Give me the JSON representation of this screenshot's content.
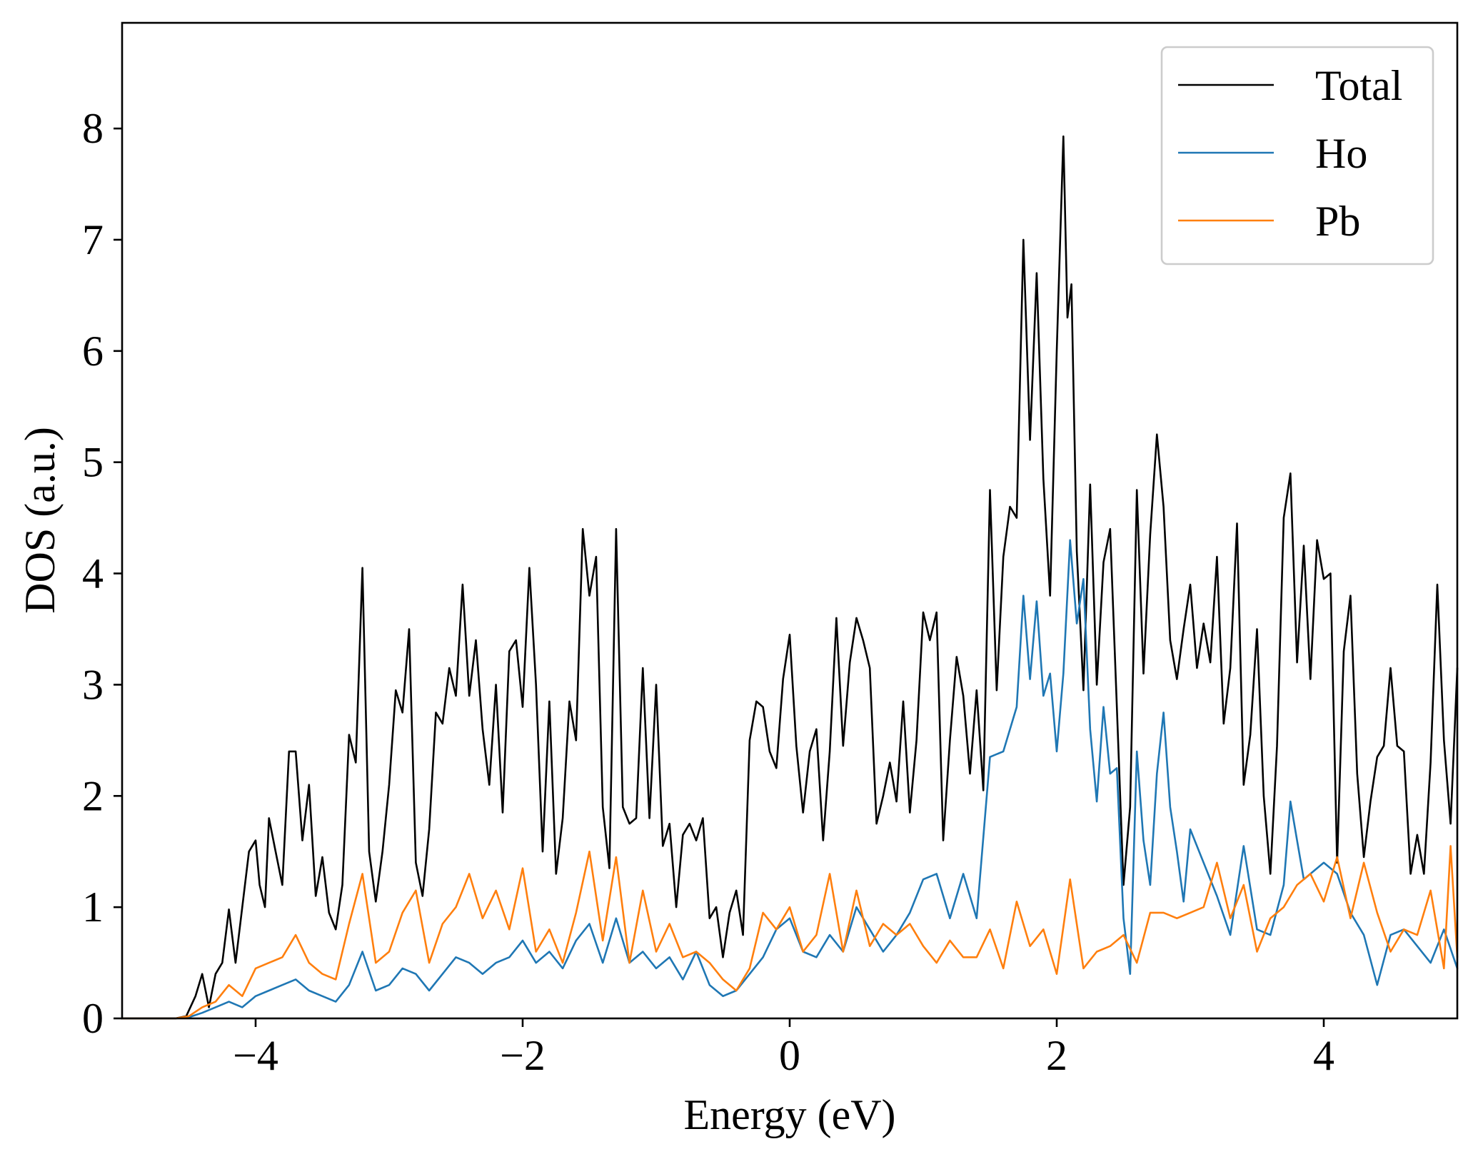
{
  "chart_data": {
    "type": "line",
    "title": "",
    "xlabel": "Energy (eV)",
    "ylabel": "DOS (a.u.)",
    "xlim": [
      -5,
      5
    ],
    "ylim": [
      0,
      8.95
    ],
    "x_ticks": [
      -4,
      -2,
      0,
      2,
      4
    ],
    "x_tick_labels": [
      "−4",
      "−2",
      "0",
      "2",
      "4"
    ],
    "y_ticks": [
      0,
      1,
      2,
      3,
      4,
      5,
      6,
      7,
      8
    ],
    "y_tick_labels": [
      "0",
      "1",
      "2",
      "3",
      "4",
      "5",
      "6",
      "7",
      "8"
    ],
    "grid": false,
    "legend_position": "top-right",
    "series": [
      {
        "name": "Total",
        "color": "#000000",
        "x": [
          -5.0,
          -4.6,
          -4.52,
          -4.45,
          -4.4,
          -4.35,
          -4.3,
          -4.25,
          -4.2,
          -4.15,
          -4.1,
          -4.05,
          -4.0,
          -3.97,
          -3.93,
          -3.9,
          -3.85,
          -3.8,
          -3.75,
          -3.7,
          -3.65,
          -3.6,
          -3.55,
          -3.5,
          -3.45,
          -3.4,
          -3.35,
          -3.3,
          -3.25,
          -3.2,
          -3.15,
          -3.1,
          -3.05,
          -3.0,
          -2.95,
          -2.9,
          -2.85,
          -2.8,
          -2.75,
          -2.7,
          -2.65,
          -2.6,
          -2.55,
          -2.5,
          -2.45,
          -2.4,
          -2.35,
          -2.3,
          -2.25,
          -2.2,
          -2.15,
          -2.1,
          -2.05,
          -2.0,
          -1.95,
          -1.9,
          -1.85,
          -1.8,
          -1.75,
          -1.7,
          -1.65,
          -1.6,
          -1.55,
          -1.5,
          -1.45,
          -1.4,
          -1.35,
          -1.3,
          -1.25,
          -1.2,
          -1.15,
          -1.1,
          -1.05,
          -1.0,
          -0.95,
          -0.9,
          -0.85,
          -0.8,
          -0.75,
          -0.7,
          -0.65,
          -0.6,
          -0.55,
          -0.5,
          -0.45,
          -0.4,
          -0.35,
          -0.3,
          -0.25,
          -0.2,
          -0.15,
          -0.1,
          -0.05,
          0.0,
          0.05,
          0.1,
          0.15,
          0.2,
          0.25,
          0.3,
          0.35,
          0.4,
          0.45,
          0.5,
          0.55,
          0.6,
          0.65,
          0.7,
          0.75,
          0.8,
          0.85,
          0.9,
          0.95,
          1.0,
          1.05,
          1.1,
          1.15,
          1.2,
          1.25,
          1.3,
          1.35,
          1.4,
          1.45,
          1.5,
          1.55,
          1.6,
          1.65,
          1.7,
          1.75,
          1.8,
          1.85,
          1.9,
          1.95,
          2.0,
          2.05,
          2.08,
          2.11,
          2.15,
          2.2,
          2.25,
          2.3,
          2.35,
          2.4,
          2.45,
          2.5,
          2.55,
          2.6,
          2.65,
          2.7,
          2.75,
          2.8,
          2.85,
          2.9,
          2.95,
          3.0,
          3.05,
          3.1,
          3.15,
          3.2,
          3.25,
          3.3,
          3.35,
          3.4,
          3.45,
          3.5,
          3.55,
          3.6,
          3.65,
          3.7,
          3.75,
          3.8,
          3.85,
          3.9,
          3.95,
          4.0,
          4.05,
          4.1,
          4.15,
          4.2,
          4.25,
          4.3,
          4.35,
          4.4,
          4.45,
          4.5,
          4.55,
          4.6,
          4.65,
          4.7,
          4.75,
          4.8,
          4.85,
          4.9,
          4.95,
          5.0
        ],
        "y": [
          0.0,
          0.0,
          0.02,
          0.2,
          0.4,
          0.1,
          0.4,
          0.5,
          0.98,
          0.5,
          1.0,
          1.5,
          1.6,
          1.2,
          1.0,
          1.8,
          1.5,
          1.2,
          2.4,
          2.4,
          1.6,
          2.1,
          1.1,
          1.45,
          0.95,
          0.8,
          1.2,
          2.55,
          2.3,
          4.05,
          1.5,
          1.05,
          1.5,
          2.1,
          2.95,
          2.75,
          3.5,
          1.4,
          1.1,
          1.7,
          2.75,
          2.65,
          3.15,
          2.9,
          3.9,
          2.9,
          3.4,
          2.6,
          2.1,
          3.0,
          1.85,
          3.3,
          3.4,
          2.8,
          4.05,
          3.0,
          1.5,
          2.85,
          1.3,
          1.8,
          2.85,
          2.5,
          4.4,
          3.8,
          4.15,
          1.9,
          1.35,
          4.4,
          1.9,
          1.75,
          1.8,
          3.15,
          1.8,
          3.0,
          1.55,
          1.75,
          1.0,
          1.65,
          1.75,
          1.6,
          1.8,
          0.9,
          1.0,
          0.55,
          0.95,
          1.15,
          0.75,
          2.5,
          2.85,
          2.8,
          2.4,
          2.25,
          3.05,
          3.45,
          2.45,
          1.85,
          2.4,
          2.6,
          1.6,
          2.4,
          3.6,
          2.45,
          3.2,
          3.6,
          3.4,
          3.15,
          1.75,
          2.0,
          2.3,
          1.95,
          2.85,
          1.85,
          2.5,
          3.65,
          3.4,
          3.65,
          1.6,
          2.5,
          3.25,
          2.9,
          2.2,
          2.95,
          2.05,
          4.75,
          2.95,
          4.15,
          4.6,
          4.5,
          7.0,
          5.2,
          6.7,
          4.85,
          3.8,
          6.0,
          7.93,
          6.3,
          6.6,
          4.2,
          2.95,
          4.8,
          3.0,
          4.1,
          4.4,
          2.8,
          1.2,
          1.9,
          4.75,
          3.1,
          4.35,
          5.25,
          4.6,
          3.4,
          3.05,
          3.5,
          3.9,
          3.15,
          3.55,
          3.2,
          4.15,
          2.65,
          3.15,
          4.45,
          2.1,
          2.55,
          3.5,
          2.0,
          1.3,
          2.45,
          4.5,
          4.9,
          3.2,
          4.25,
          3.05,
          4.3,
          3.95,
          4.0,
          1.4,
          3.3,
          3.8,
          2.2,
          1.45,
          1.95,
          2.35,
          2.45,
          3.15,
          2.45,
          2.4,
          1.3,
          1.65,
          1.3,
          2.3,
          3.9,
          2.5,
          1.75,
          3.15
        ]
      },
      {
        "name": "Ho",
        "color": "#1f77b4",
        "x": [
          -5.0,
          -4.6,
          -4.5,
          -4.4,
          -4.3,
          -4.2,
          -4.1,
          -4.0,
          -3.9,
          -3.8,
          -3.7,
          -3.6,
          -3.5,
          -3.4,
          -3.3,
          -3.2,
          -3.1,
          -3.0,
          -2.9,
          -2.8,
          -2.7,
          -2.6,
          -2.5,
          -2.4,
          -2.3,
          -2.2,
          -2.1,
          -2.0,
          -1.9,
          -1.8,
          -1.7,
          -1.6,
          -1.5,
          -1.4,
          -1.3,
          -1.2,
          -1.1,
          -1.0,
          -0.9,
          -0.8,
          -0.7,
          -0.6,
          -0.5,
          -0.4,
          -0.3,
          -0.2,
          -0.1,
          0.0,
          0.1,
          0.2,
          0.3,
          0.4,
          0.5,
          0.6,
          0.7,
          0.8,
          0.9,
          1.0,
          1.1,
          1.2,
          1.3,
          1.4,
          1.5,
          1.6,
          1.7,
          1.75,
          1.8,
          1.85,
          1.9,
          1.95,
          2.0,
          2.05,
          2.1,
          2.15,
          2.2,
          2.25,
          2.3,
          2.35,
          2.4,
          2.45,
          2.5,
          2.55,
          2.6,
          2.65,
          2.7,
          2.75,
          2.8,
          2.85,
          2.9,
          2.95,
          3.0,
          3.1,
          3.2,
          3.3,
          3.4,
          3.5,
          3.6,
          3.7,
          3.75,
          3.8,
          3.85,
          3.9,
          4.0,
          4.1,
          4.2,
          4.3,
          4.4,
          4.5,
          4.6,
          4.7,
          4.8,
          4.9,
          5.0
        ],
        "y": [
          0.0,
          0.0,
          0.01,
          0.05,
          0.1,
          0.15,
          0.1,
          0.2,
          0.25,
          0.3,
          0.35,
          0.25,
          0.2,
          0.15,
          0.3,
          0.6,
          0.25,
          0.3,
          0.45,
          0.4,
          0.25,
          0.4,
          0.55,
          0.5,
          0.4,
          0.5,
          0.55,
          0.7,
          0.5,
          0.6,
          0.45,
          0.7,
          0.85,
          0.5,
          0.9,
          0.5,
          0.6,
          0.45,
          0.55,
          0.35,
          0.6,
          0.3,
          0.2,
          0.25,
          0.4,
          0.55,
          0.8,
          0.9,
          0.6,
          0.55,
          0.75,
          0.6,
          1.0,
          0.8,
          0.6,
          0.75,
          0.95,
          1.25,
          1.3,
          0.9,
          1.3,
          0.9,
          2.35,
          2.4,
          2.8,
          3.8,
          3.05,
          3.75,
          2.9,
          3.1,
          2.4,
          3.1,
          4.3,
          3.55,
          3.95,
          2.6,
          1.95,
          2.8,
          2.2,
          2.25,
          0.9,
          0.4,
          2.4,
          1.6,
          1.2,
          2.2,
          2.75,
          1.9,
          1.5,
          1.05,
          1.7,
          1.4,
          1.1,
          0.75,
          1.55,
          0.8,
          0.75,
          1.2,
          1.95,
          1.6,
          1.25,
          1.3,
          1.4,
          1.3,
          0.95,
          0.75,
          0.3,
          0.75,
          0.8,
          0.65,
          0.5,
          0.8,
          0.45
        ]
      },
      {
        "name": "Pb",
        "color": "#ff7f0e",
        "x": [
          -5.0,
          -4.6,
          -4.5,
          -4.4,
          -4.3,
          -4.2,
          -4.1,
          -4.0,
          -3.9,
          -3.8,
          -3.7,
          -3.6,
          -3.5,
          -3.4,
          -3.3,
          -3.2,
          -3.1,
          -3.0,
          -2.9,
          -2.8,
          -2.7,
          -2.6,
          -2.5,
          -2.4,
          -2.3,
          -2.2,
          -2.1,
          -2.0,
          -1.9,
          -1.8,
          -1.7,
          -1.6,
          -1.5,
          -1.4,
          -1.3,
          -1.2,
          -1.1,
          -1.0,
          -0.9,
          -0.8,
          -0.7,
          -0.6,
          -0.5,
          -0.4,
          -0.3,
          -0.2,
          -0.1,
          0.0,
          0.1,
          0.2,
          0.3,
          0.4,
          0.5,
          0.6,
          0.7,
          0.8,
          0.9,
          1.0,
          1.1,
          1.2,
          1.3,
          1.4,
          1.5,
          1.6,
          1.7,
          1.8,
          1.9,
          2.0,
          2.1,
          2.2,
          2.3,
          2.4,
          2.5,
          2.6,
          2.7,
          2.8,
          2.9,
          3.0,
          3.1,
          3.2,
          3.3,
          3.4,
          3.5,
          3.6,
          3.7,
          3.8,
          3.9,
          4.0,
          4.1,
          4.2,
          4.3,
          4.4,
          4.5,
          4.6,
          4.7,
          4.8,
          4.9,
          4.95,
          5.0
        ],
        "y": [
          0.0,
          0.0,
          0.02,
          0.1,
          0.15,
          0.3,
          0.2,
          0.45,
          0.5,
          0.55,
          0.75,
          0.5,
          0.4,
          0.35,
          0.85,
          1.3,
          0.5,
          0.6,
          0.95,
          1.15,
          0.5,
          0.85,
          1.0,
          1.3,
          0.9,
          1.15,
          0.8,
          1.35,
          0.6,
          0.8,
          0.5,
          0.95,
          1.5,
          0.7,
          1.45,
          0.5,
          1.15,
          0.6,
          0.85,
          0.55,
          0.6,
          0.5,
          0.35,
          0.25,
          0.45,
          0.95,
          0.8,
          1.0,
          0.6,
          0.75,
          1.3,
          0.6,
          1.15,
          0.65,
          0.85,
          0.75,
          0.85,
          0.65,
          0.5,
          0.7,
          0.55,
          0.55,
          0.8,
          0.45,
          1.05,
          0.65,
          0.8,
          0.4,
          1.25,
          0.45,
          0.6,
          0.65,
          0.75,
          0.5,
          0.95,
          0.95,
          0.9,
          0.95,
          1.0,
          1.4,
          0.9,
          1.2,
          0.6,
          0.9,
          1.0,
          1.2,
          1.3,
          1.05,
          1.45,
          0.9,
          1.4,
          0.95,
          0.6,
          0.8,
          0.75,
          1.15,
          0.45,
          1.55,
          0.55
        ]
      }
    ]
  }
}
